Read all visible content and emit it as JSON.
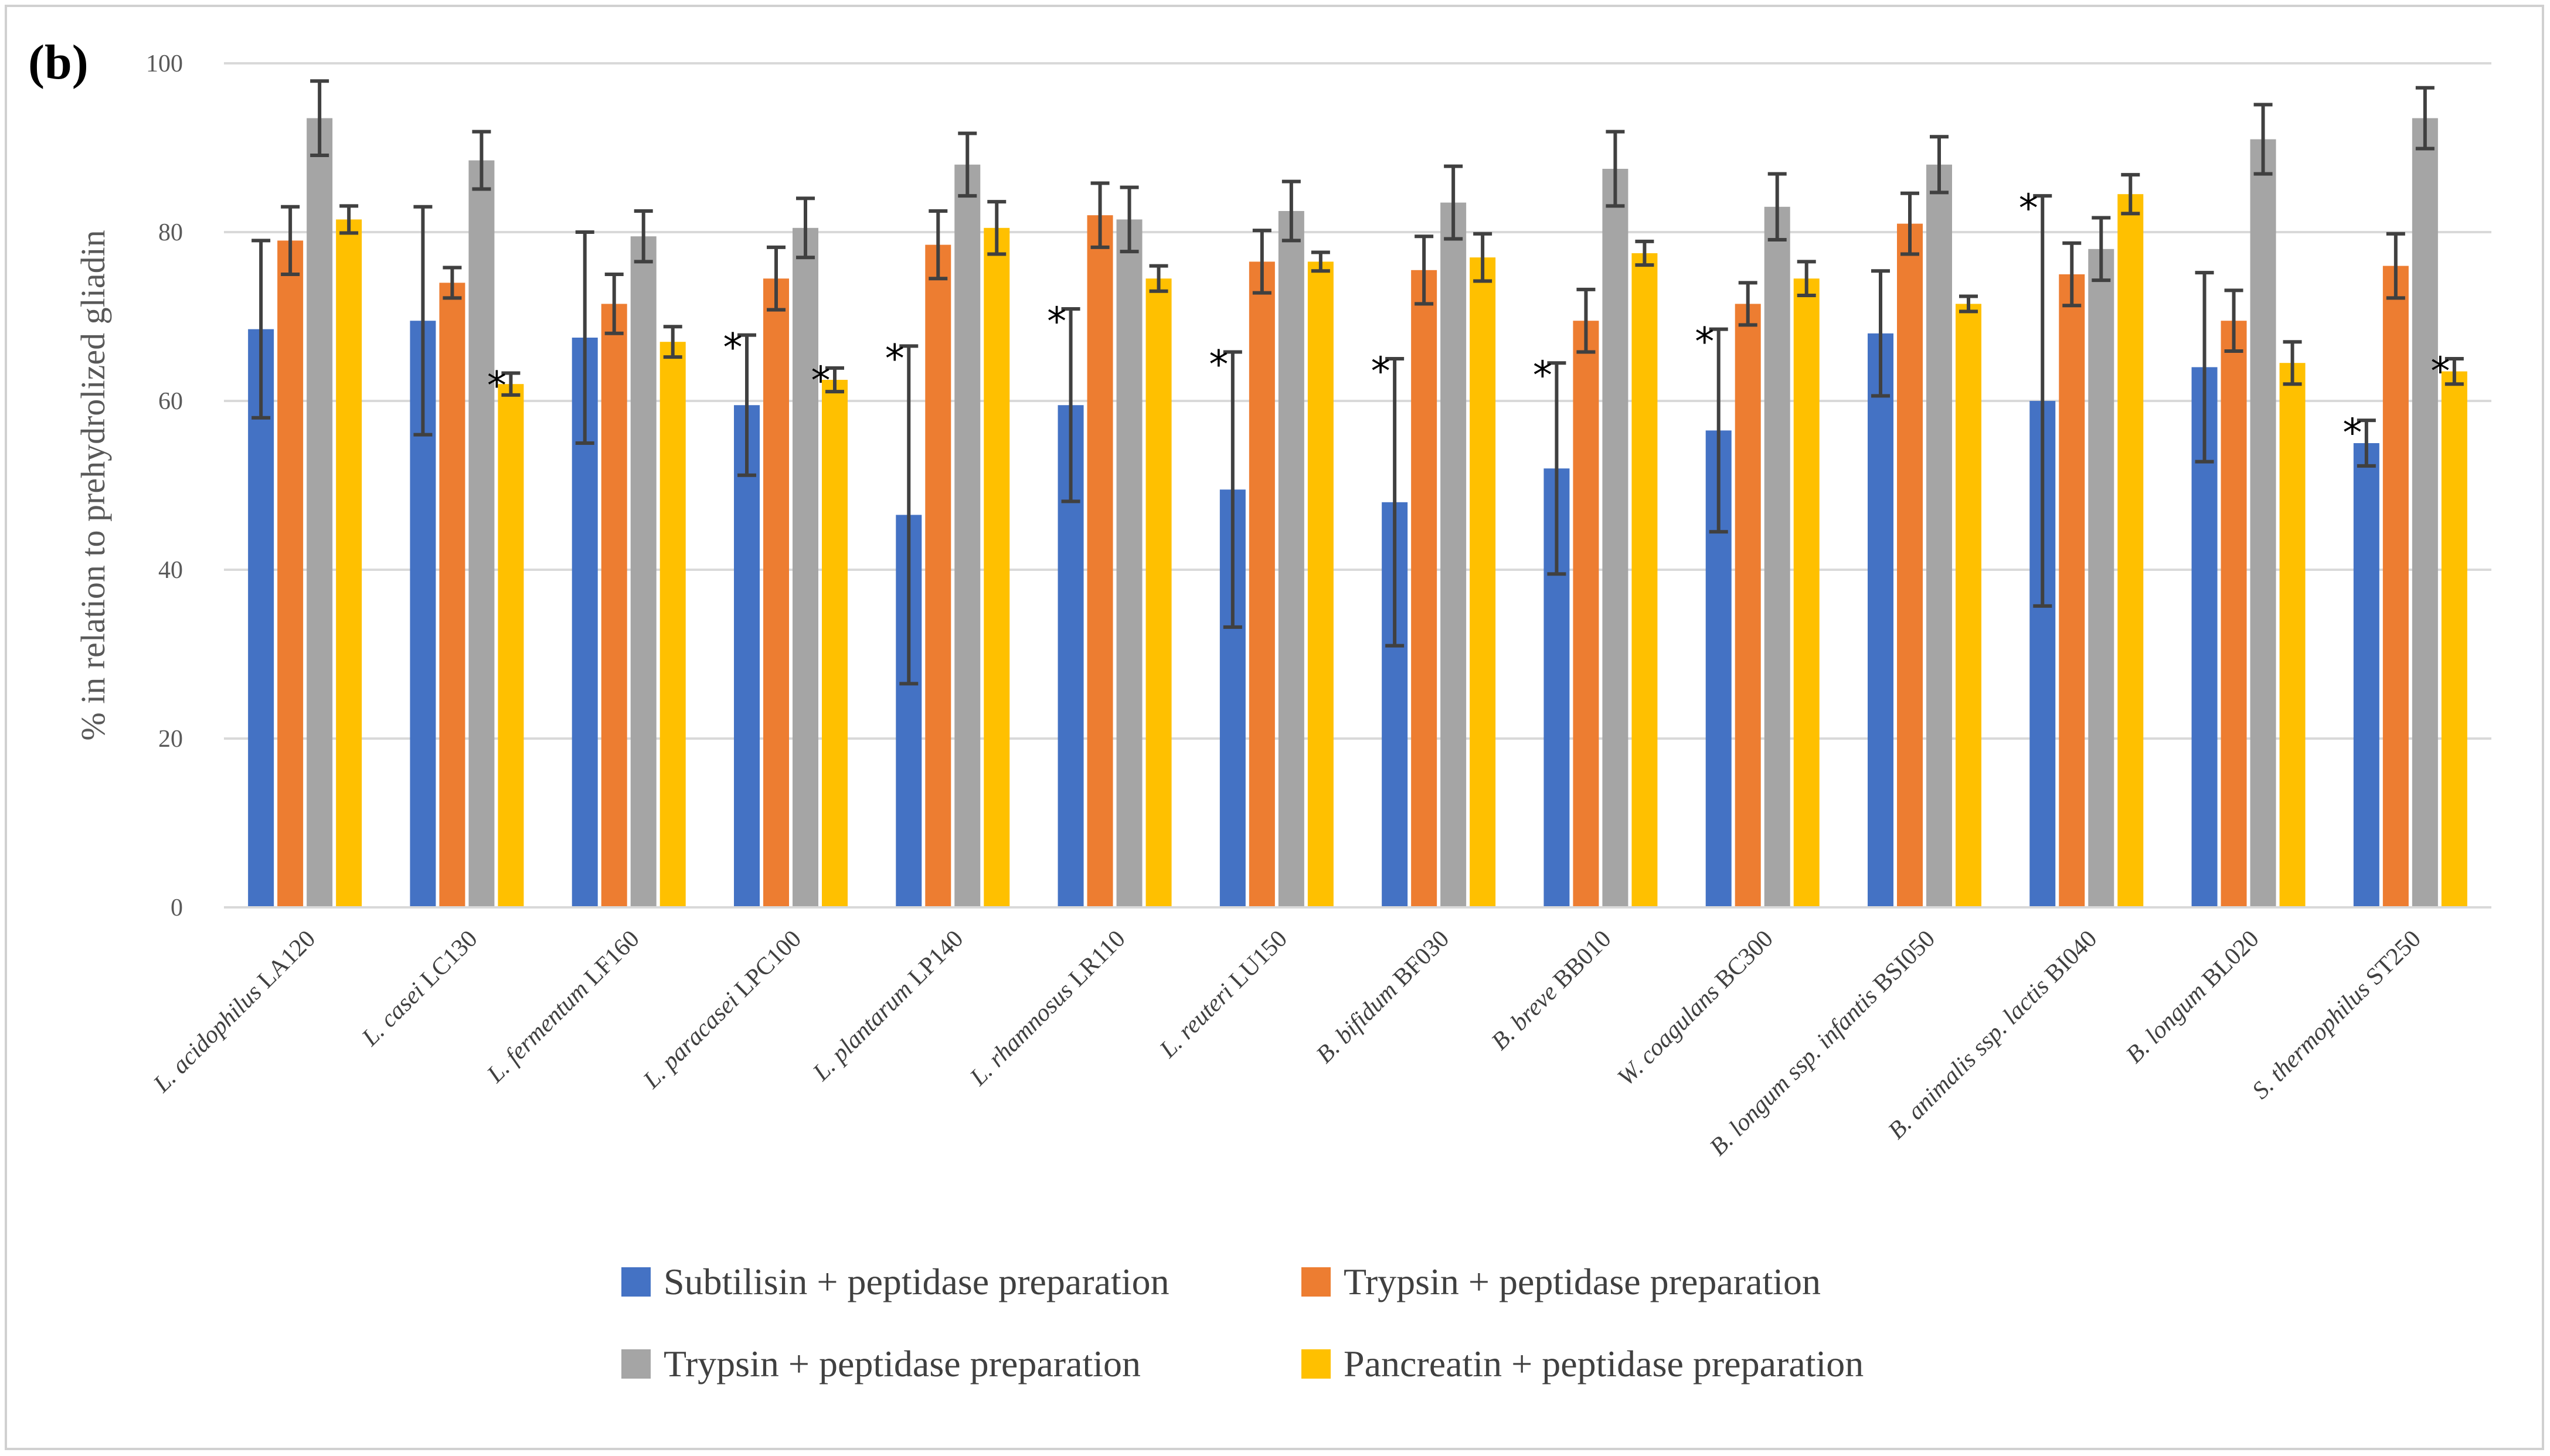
{
  "panel_label": "(b)",
  "chart_data": {
    "type": "bar",
    "ylabel": "% in relation to prehydrolized gliadin",
    "xlabel": "",
    "ylim": [
      0,
      100
    ],
    "yticks": [
      0,
      20,
      40,
      60,
      80,
      100
    ],
    "grid": "horizontal",
    "legend_position": "bottom",
    "categories": [
      "L. acidophilus LA120",
      "L. casei LC130",
      "L. fermentum LF160",
      "L. paracasei LPC100",
      "L. plantarum LP140",
      "L. rhamnosus LR110",
      "L. reuteri LU150",
      "B. bifidum BF030",
      "B. breve BB010",
      "W. coagulans BC300",
      "B. longum ssp. infantis BSI050",
      "B. animalis ssp. lactis BI040",
      "B. longum BL020",
      "S. thermophilus ST250"
    ],
    "series": [
      {
        "name": "Subtilisin + peptidase preparation",
        "color": "#4472C4",
        "values": [
          68.5,
          69.5,
          67.5,
          59.5,
          46.5,
          59.5,
          49.5,
          48.0,
          52.0,
          56.5,
          68.0,
          60.0,
          64.0,
          55.0
        ],
        "errors": [
          10.5,
          13.5,
          12.5,
          8.3,
          20.0,
          11.4,
          16.3,
          17.0,
          12.5,
          12.0,
          7.4,
          24.3,
          11.2,
          2.7
        ],
        "significant": [
          false,
          false,
          false,
          true,
          true,
          true,
          true,
          true,
          true,
          true,
          false,
          true,
          false,
          true
        ]
      },
      {
        "name": "Trypsin + peptidase preparation",
        "color": "#ED7D31",
        "values": [
          79.0,
          74.0,
          71.5,
          74.5,
          78.5,
          82.0,
          76.5,
          75.5,
          69.5,
          71.5,
          81.0,
          75.0,
          69.5,
          76.0
        ],
        "errors": [
          4.0,
          1.8,
          3.5,
          3.7,
          4.0,
          3.8,
          3.7,
          4.0,
          3.7,
          2.5,
          3.6,
          3.7,
          3.6,
          3.8
        ],
        "significant": [
          false,
          false,
          false,
          false,
          false,
          false,
          false,
          false,
          false,
          false,
          false,
          false,
          false,
          false
        ]
      },
      {
        "name": "Trypsin + peptidase preparation",
        "color": "#A5A5A5",
        "values": [
          93.5,
          88.5,
          79.5,
          80.5,
          88.0,
          81.5,
          82.5,
          83.5,
          87.5,
          83.0,
          88.0,
          78.0,
          91.0,
          93.5
        ],
        "errors": [
          4.4,
          3.4,
          3.0,
          3.5,
          3.7,
          3.8,
          3.5,
          4.3,
          4.4,
          3.9,
          3.3,
          3.7,
          4.1,
          3.6
        ],
        "significant": [
          false,
          false,
          false,
          false,
          false,
          false,
          false,
          false,
          false,
          false,
          false,
          false,
          false,
          false
        ]
      },
      {
        "name": "Pancreatin + peptidase preparation",
        "color": "#FFC000",
        "values": [
          81.5,
          62.0,
          67.0,
          62.5,
          80.5,
          74.5,
          76.5,
          77.0,
          77.5,
          74.5,
          71.5,
          84.5,
          64.5,
          63.5
        ],
        "errors": [
          1.6,
          1.3,
          1.8,
          1.4,
          3.1,
          1.5,
          1.1,
          2.8,
          1.4,
          2.0,
          0.9,
          2.3,
          2.5,
          1.5
        ],
        "significant": [
          false,
          true,
          false,
          true,
          false,
          false,
          false,
          false,
          false,
          false,
          false,
          false,
          false,
          true
        ]
      }
    ]
  },
  "significance_marker": "*"
}
